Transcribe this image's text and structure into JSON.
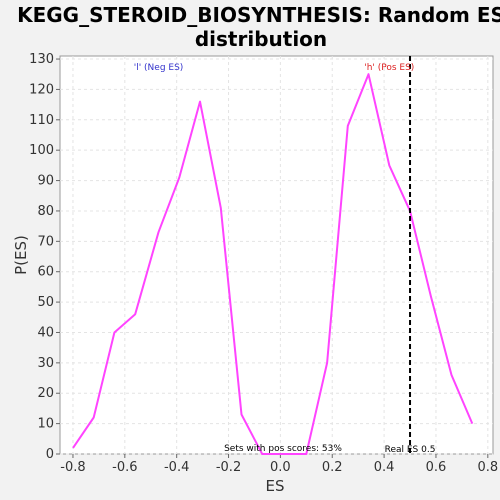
{
  "chart_data": {
    "type": "line",
    "title": [
      "KEGG_STEROID_BIOSYNTHESIS: Random ES",
      "distribution"
    ],
    "xlabel": "ES",
    "ylabel": "P(ES)",
    "xlim": [
      -0.85,
      0.82
    ],
    "ylim": [
      0,
      131
    ],
    "x_ticks": [
      -0.8,
      -0.6,
      -0.4,
      -0.2,
      0.0,
      0.2,
      0.4,
      0.6,
      0.8
    ],
    "x_tick_labels": [
      "-0.8",
      "-0.6",
      "-0.4",
      "-0.2",
      "0.0",
      "0.2",
      "0.4",
      "0.6",
      "0.8"
    ],
    "y_ticks": [
      0,
      10,
      20,
      30,
      40,
      50,
      60,
      70,
      80,
      90,
      100,
      110,
      120,
      130
    ],
    "y_tick_labels": [
      "0",
      "10",
      "20",
      "30",
      "40",
      "50",
      "60",
      "70",
      "80",
      "90",
      "100",
      "110",
      "120",
      "130"
    ],
    "grid": true,
    "series": [
      {
        "color": "#ff44ff",
        "x": [
          -0.8,
          -0.72,
          -0.64,
          -0.56,
          -0.47,
          -0.39,
          -0.31,
          -0.23,
          -0.15,
          -0.07,
          0.02,
          0.1,
          0.18,
          0.26,
          0.34,
          0.42,
          0.5,
          0.58,
          0.66,
          0.74
        ],
        "y": [
          2,
          12,
          40,
          46,
          73,
          91,
          116,
          81,
          13,
          0,
          0,
          0,
          30,
          108,
          125,
          95,
          80,
          52,
          26,
          10
        ]
      }
    ],
    "annotations": {
      "neg_label": {
        "text": "'l' (Neg ES)",
        "x": -0.47,
        "color": "#3333cc"
      },
      "pos_label": {
        "text": "'h' (Pos ES)",
        "x": 0.42,
        "color": "#dd2222"
      },
      "sets_text": "Sets with pos scores: 53%",
      "real_es_label": "Real ES 0.5",
      "real_es_value": 0.5
    }
  }
}
